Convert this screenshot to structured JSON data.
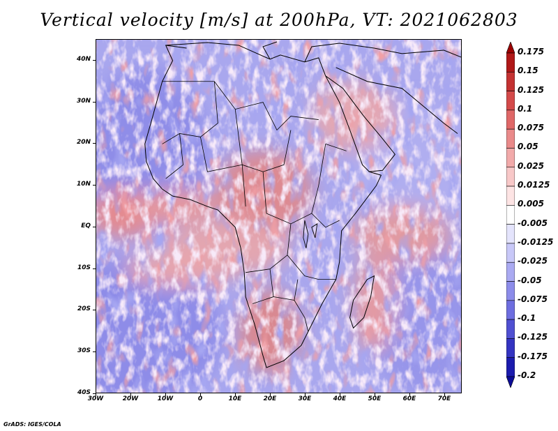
{
  "title": "Vertical velocity [m/s] at 200hPa, VT: 2021062803",
  "footer": "GrADS: IGES/COLA",
  "map": {
    "variable": "Vertical velocity",
    "units": "m/s",
    "level": "200hPa",
    "valid_time": "2021062803",
    "lon_range": [
      -30,
      75
    ],
    "lat_range": [
      -40,
      45
    ],
    "lat_ticks": [
      {
        "value": 40,
        "label": "40N"
      },
      {
        "value": 30,
        "label": "30N"
      },
      {
        "value": 20,
        "label": "20N"
      },
      {
        "value": 10,
        "label": "10N"
      },
      {
        "value": 0,
        "label": "EQ"
      },
      {
        "value": -10,
        "label": "10S"
      },
      {
        "value": -20,
        "label": "20S"
      },
      {
        "value": -30,
        "label": "30S"
      },
      {
        "value": -40,
        "label": "40S"
      }
    ],
    "lon_ticks": [
      {
        "value": -30,
        "label": "30W"
      },
      {
        "value": -20,
        "label": "20W"
      },
      {
        "value": -10,
        "label": "10W"
      },
      {
        "value": 0,
        "label": "0"
      },
      {
        "value": 10,
        "label": "10E"
      },
      {
        "value": 20,
        "label": "20E"
      },
      {
        "value": 30,
        "label": "30E"
      },
      {
        "value": 40,
        "label": "40E"
      },
      {
        "value": 50,
        "label": "50E"
      },
      {
        "value": 60,
        "label": "60E"
      },
      {
        "value": 70,
        "label": "70E"
      }
    ]
  },
  "colorbar": {
    "levels": [
      {
        "label": "0.175",
        "color": "#9c0000"
      },
      {
        "label": "0.15",
        "color": "#b01818"
      },
      {
        "label": "0.125",
        "color": "#c43232"
      },
      {
        "label": "0.1",
        "color": "#d44a4a"
      },
      {
        "label": "0.075",
        "color": "#e06868"
      },
      {
        "label": "0.05",
        "color": "#ea8a8a"
      },
      {
        "label": "0.025",
        "color": "#f2aaaa"
      },
      {
        "label": "0.0125",
        "color": "#f8c8c8"
      },
      {
        "label": "0.005",
        "color": "#fde4e4"
      },
      {
        "label": "-0.005",
        "color": "#ffffff"
      },
      {
        "label": "-0.0125",
        "color": "#e4e4fc"
      },
      {
        "label": "-0.025",
        "color": "#c8c8f8"
      },
      {
        "label": "-0.05",
        "color": "#aaaaf2"
      },
      {
        "label": "-0.075",
        "color": "#8c8cea"
      },
      {
        "label": "-0.1",
        "color": "#6e6ee0"
      },
      {
        "label": "-0.125",
        "color": "#5050d2"
      },
      {
        "label": "-0.175",
        "color": "#3434c2"
      },
      {
        "label": "-0.2",
        "color": "#1c1cae"
      },
      {
        "label": "",
        "color": "#0c0c98"
      }
    ]
  }
}
